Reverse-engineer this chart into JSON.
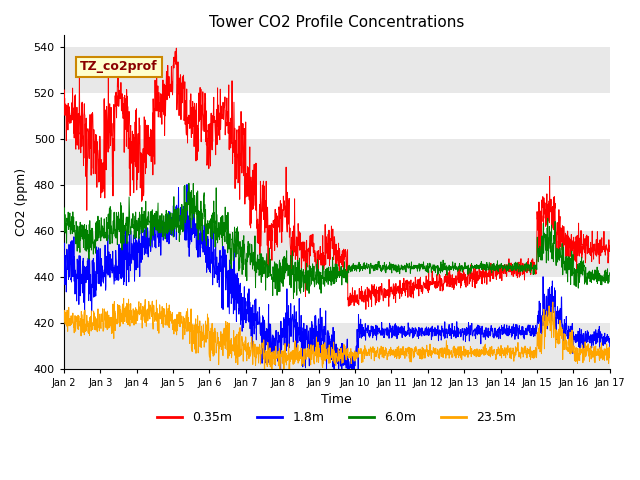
{
  "title": "Tower CO2 Profile Concentrations",
  "xlabel": "Time",
  "ylabel": "CO2 (ppm)",
  "ylim": [
    400,
    545
  ],
  "xlim": [
    0,
    15
  ],
  "xtick_labels": [
    "Jan 2",
    "Jan 3",
    "Jan 4",
    "Jan 5",
    "Jan 6",
    "Jan 7",
    "Jan 8",
    "Jan 9",
    "Jan 10",
    "Jan 11",
    "Jan 12",
    "Jan 13",
    "Jan 14",
    "Jan 15",
    "Jan 16",
    "Jan 17"
  ],
  "xtick_positions": [
    0,
    1,
    2,
    3,
    4,
    5,
    6,
    7,
    8,
    9,
    10,
    11,
    12,
    13,
    14,
    15
  ],
  "legend_labels": [
    "0.35m",
    "1.8m",
    "6.0m",
    "23.5m"
  ],
  "legend_colors": [
    "red",
    "blue",
    "green",
    "orange"
  ],
  "annotation_text": "TZ_co2prof",
  "background_color": "#ffffff",
  "title_fontsize": 11,
  "axis_fontsize": 9,
  "yticks": [
    400,
    420,
    440,
    460,
    480,
    500,
    520,
    540
  ],
  "band_colors": [
    "#ffffff",
    "#e8e8e8",
    "#ffffff",
    "#e8e8e8",
    "#ffffff",
    "#e8e8e8",
    "#ffffff"
  ]
}
